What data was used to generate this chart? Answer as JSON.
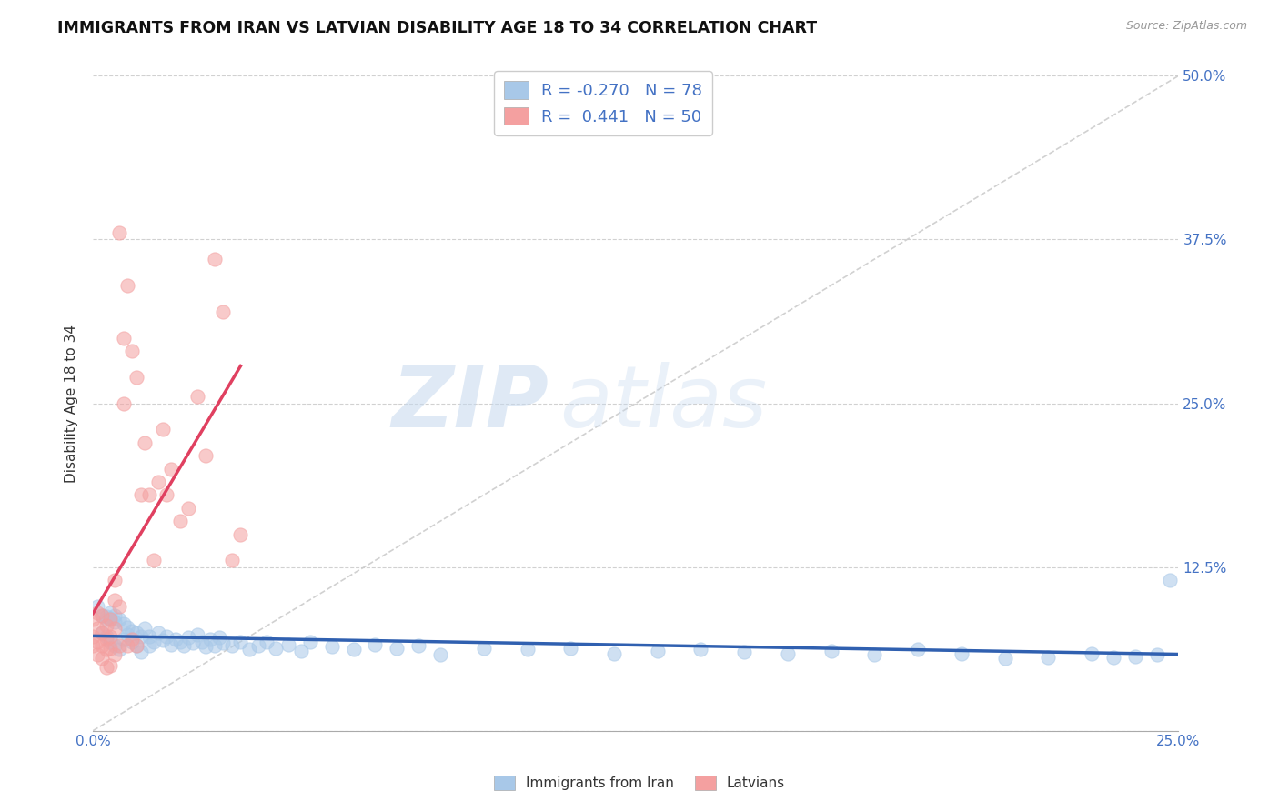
{
  "title": "IMMIGRANTS FROM IRAN VS LATVIAN DISABILITY AGE 18 TO 34 CORRELATION CHART",
  "source": "Source: ZipAtlas.com",
  "ylabel": "Disability Age 18 to 34",
  "xlim": [
    0.0,
    0.25
  ],
  "ylim": [
    0.0,
    0.5
  ],
  "legend_labels": [
    "Immigrants from Iran",
    "Latvians"
  ],
  "legend_R": [
    -0.27,
    0.441
  ],
  "legend_N": [
    78,
    50
  ],
  "blue_color": "#a8c8e8",
  "pink_color": "#f4a0a0",
  "blue_line_color": "#3060b0",
  "pink_line_color": "#e04060",
  "diagonal_color": "#cccccc",
  "background_color": "#ffffff",
  "grid_color": "#cccccc",
  "title_color": "#111111",
  "axis_label_color": "#333333",
  "tick_label_color": "#4472c4",
  "watermark_zip": "ZIP",
  "watermark_atlas": "atlas",
  "iran_scatter_x": [
    0.001,
    0.002,
    0.002,
    0.003,
    0.003,
    0.004,
    0.004,
    0.005,
    0.005,
    0.006,
    0.006,
    0.007,
    0.007,
    0.008,
    0.008,
    0.009,
    0.009,
    0.01,
    0.01,
    0.011,
    0.011,
    0.012,
    0.013,
    0.013,
    0.014,
    0.015,
    0.016,
    0.017,
    0.018,
    0.019,
    0.02,
    0.021,
    0.022,
    0.023,
    0.024,
    0.025,
    0.026,
    0.027,
    0.028,
    0.029,
    0.03,
    0.032,
    0.034,
    0.036,
    0.038,
    0.04,
    0.042,
    0.045,
    0.048,
    0.05,
    0.055,
    0.06,
    0.065,
    0.07,
    0.075,
    0.08,
    0.09,
    0.1,
    0.11,
    0.12,
    0.13,
    0.14,
    0.15,
    0.16,
    0.17,
    0.18,
    0.19,
    0.2,
    0.21,
    0.22,
    0.23,
    0.235,
    0.24,
    0.245,
    0.248,
    0.003,
    0.004,
    0.005
  ],
  "iran_scatter_y": [
    0.095,
    0.088,
    0.075,
    0.085,
    0.072,
    0.09,
    0.068,
    0.088,
    0.065,
    0.085,
    0.062,
    0.082,
    0.07,
    0.079,
    0.073,
    0.076,
    0.068,
    0.075,
    0.065,
    0.072,
    0.06,
    0.078,
    0.065,
    0.072,
    0.068,
    0.075,
    0.069,
    0.072,
    0.066,
    0.07,
    0.068,
    0.065,
    0.071,
    0.067,
    0.073,
    0.068,
    0.064,
    0.07,
    0.065,
    0.071,
    0.067,
    0.065,
    0.068,
    0.062,
    0.065,
    0.068,
    0.063,
    0.066,
    0.061,
    0.068,
    0.064,
    0.062,
    0.066,
    0.063,
    0.065,
    0.058,
    0.063,
    0.062,
    0.063,
    0.059,
    0.061,
    0.062,
    0.06,
    0.059,
    0.061,
    0.058,
    0.062,
    0.059,
    0.055,
    0.056,
    0.059,
    0.056,
    0.057,
    0.058,
    0.115,
    0.087,
    0.086,
    0.083
  ],
  "latvian_scatter_x": [
    0.0,
    0.0,
    0.0,
    0.001,
    0.001,
    0.001,
    0.001,
    0.002,
    0.002,
    0.002,
    0.002,
    0.003,
    0.003,
    0.003,
    0.003,
    0.004,
    0.004,
    0.004,
    0.004,
    0.005,
    0.005,
    0.005,
    0.005,
    0.006,
    0.006,
    0.006,
    0.007,
    0.007,
    0.008,
    0.008,
    0.009,
    0.009,
    0.01,
    0.01,
    0.011,
    0.012,
    0.013,
    0.014,
    0.015,
    0.016,
    0.017,
    0.018,
    0.02,
    0.022,
    0.024,
    0.026,
    0.028,
    0.03,
    0.032,
    0.034
  ],
  "latvian_scatter_y": [
    0.085,
    0.072,
    0.065,
    0.09,
    0.078,
    0.068,
    0.058,
    0.088,
    0.075,
    0.065,
    0.055,
    0.08,
    0.07,
    0.062,
    0.048,
    0.085,
    0.072,
    0.063,
    0.05,
    0.1,
    0.115,
    0.078,
    0.058,
    0.095,
    0.38,
    0.065,
    0.25,
    0.3,
    0.34,
    0.065,
    0.29,
    0.07,
    0.27,
    0.065,
    0.18,
    0.22,
    0.18,
    0.13,
    0.19,
    0.23,
    0.18,
    0.2,
    0.16,
    0.17,
    0.255,
    0.21,
    0.36,
    0.32,
    0.13,
    0.15
  ],
  "latvian_line_x_start": 0.0,
  "latvian_line_x_end": 0.034,
  "iran_line_x_start": 0.0,
  "iran_line_x_end": 0.25
}
